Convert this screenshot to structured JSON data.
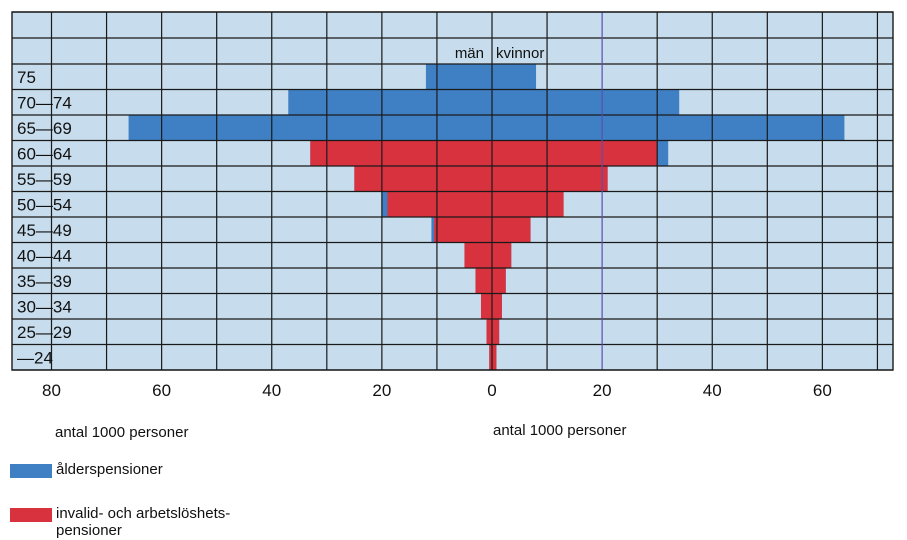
{
  "chart_data": {
    "type": "bar",
    "orientation": "horizontal",
    "layout": "population-pyramid",
    "categories": [
      "75",
      "70—74",
      "65—69",
      "60—64",
      "55—59",
      "50—54",
      "45—49",
      "40—44",
      "35—39",
      "30—34",
      "25—29",
      "—24"
    ],
    "side_labels": {
      "left": "män",
      "right": "kvinnor"
    },
    "x_ticks": [
      "80",
      "60",
      "40",
      "20",
      "0",
      "20",
      "40",
      "60",
      "80"
    ],
    "xlim": [
      -80,
      80
    ],
    "xlabel_left": "antal 1000 personer",
    "xlabel_right": "antal 1000 personer",
    "grid": true,
    "legend_position": "bottom-left",
    "series": [
      {
        "name": "ålderspensioner",
        "color": "#3f7fc4",
        "men": [
          12,
          37,
          66,
          33,
          25,
          20,
          11,
          5,
          3,
          2,
          1,
          0.5
        ],
        "women": [
          8,
          34,
          64,
          32,
          21,
          13,
          7,
          3.5,
          2.5,
          1.8,
          1.3,
          0.8
        ]
      },
      {
        "name": "invalid- och arbetslöshets-pensioner",
        "color": "#d9323f",
        "men": [
          0,
          0,
          0,
          33,
          25,
          19,
          10.5,
          5,
          3,
          2,
          1,
          0.5
        ],
        "women": [
          0,
          0,
          0,
          30,
          21,
          13,
          7,
          3.5,
          2.5,
          1.8,
          1.3,
          0.8
        ]
      }
    ]
  },
  "legend": {
    "items": [
      {
        "label": "ålderspensioner",
        "color": "#3f7fc4"
      },
      {
        "label": "invalid- och arbetslöshets-pensioner",
        "color": "#d9323f"
      }
    ]
  },
  "colors": {
    "background": "#c7dcec",
    "grid": "#1a1a1a",
    "center_line": "#5a4fb0"
  }
}
